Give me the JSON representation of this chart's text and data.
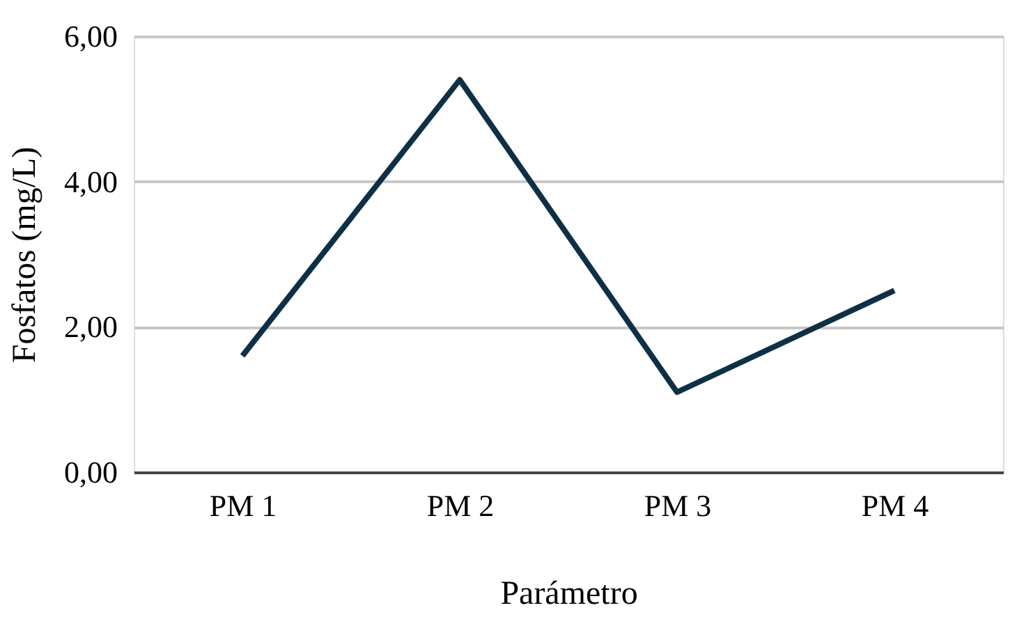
{
  "chart_data": {
    "type": "line",
    "xlabel": "Parámetro",
    "ylabel": "Fosfatos (mg/L)",
    "categories": [
      "PM 1",
      "PM 2",
      "PM 3",
      "PM 4"
    ],
    "series": [
      {
        "color": "#0e3047",
        "values": [
          1.6,
          5.4,
          1.1,
          2.5
        ]
      }
    ],
    "ylim": [
      0,
      6
    ],
    "yticks": [
      {
        "value": 0,
        "label": "0,00"
      },
      {
        "value": 2,
        "label": "2,00"
      },
      {
        "value": 4,
        "label": "4,00"
      },
      {
        "value": 6,
        "label": "6,00"
      }
    ],
    "grid": "y",
    "marker": "none",
    "line_style": "solid"
  }
}
